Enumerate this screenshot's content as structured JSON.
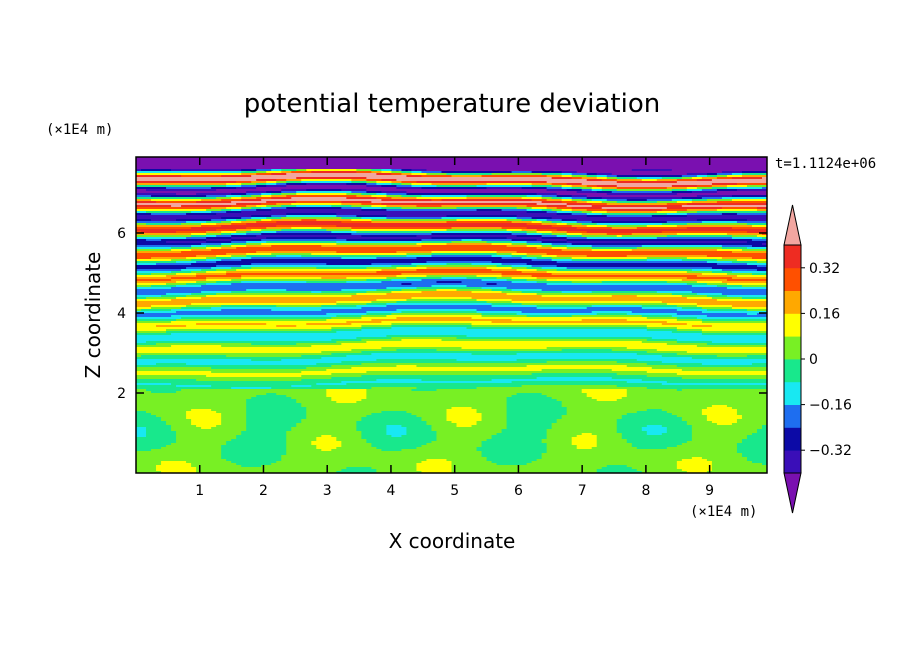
{
  "chart_data": {
    "type": "heatmap",
    "title": "potential temperature deviation",
    "xlabel": "X coordinate",
    "ylabel": "Z coordinate",
    "x_unit": "(×1E4 m)",
    "y_unit": "(×1E4 m)",
    "time_label": "t=1.1124e+06",
    "xlim": [
      0,
      9.9
    ],
    "ylim": [
      0,
      7.9
    ],
    "x_ticks": [
      1,
      2,
      3,
      4,
      5,
      6,
      7,
      8,
      9
    ],
    "y_ticks": [
      2,
      4,
      6
    ],
    "grid": false,
    "colorbar": {
      "placement": "right",
      "levels": [
        -0.4,
        -0.32,
        -0.24,
        -0.16,
        -0.08,
        0,
        0.08,
        0.16,
        0.24,
        0.32,
        0.4
      ],
      "tick_labels": [
        "0.32",
        "0.16",
        "0",
        "−0.16",
        "−0.32"
      ],
      "tick_values": [
        0.32,
        0.16,
        0,
        -0.16,
        -0.32
      ],
      "extend": "both",
      "colors": [
        "#7a10b0",
        "#3a0eb8",
        "#0c0aa6",
        "#1e6ef0",
        "#18e8f2",
        "#18e88c",
        "#78f024",
        "#ffff00",
        "#ffa800",
        "#ff5000",
        "#ee2c22",
        "#f2a6a0"
      ]
    }
  }
}
